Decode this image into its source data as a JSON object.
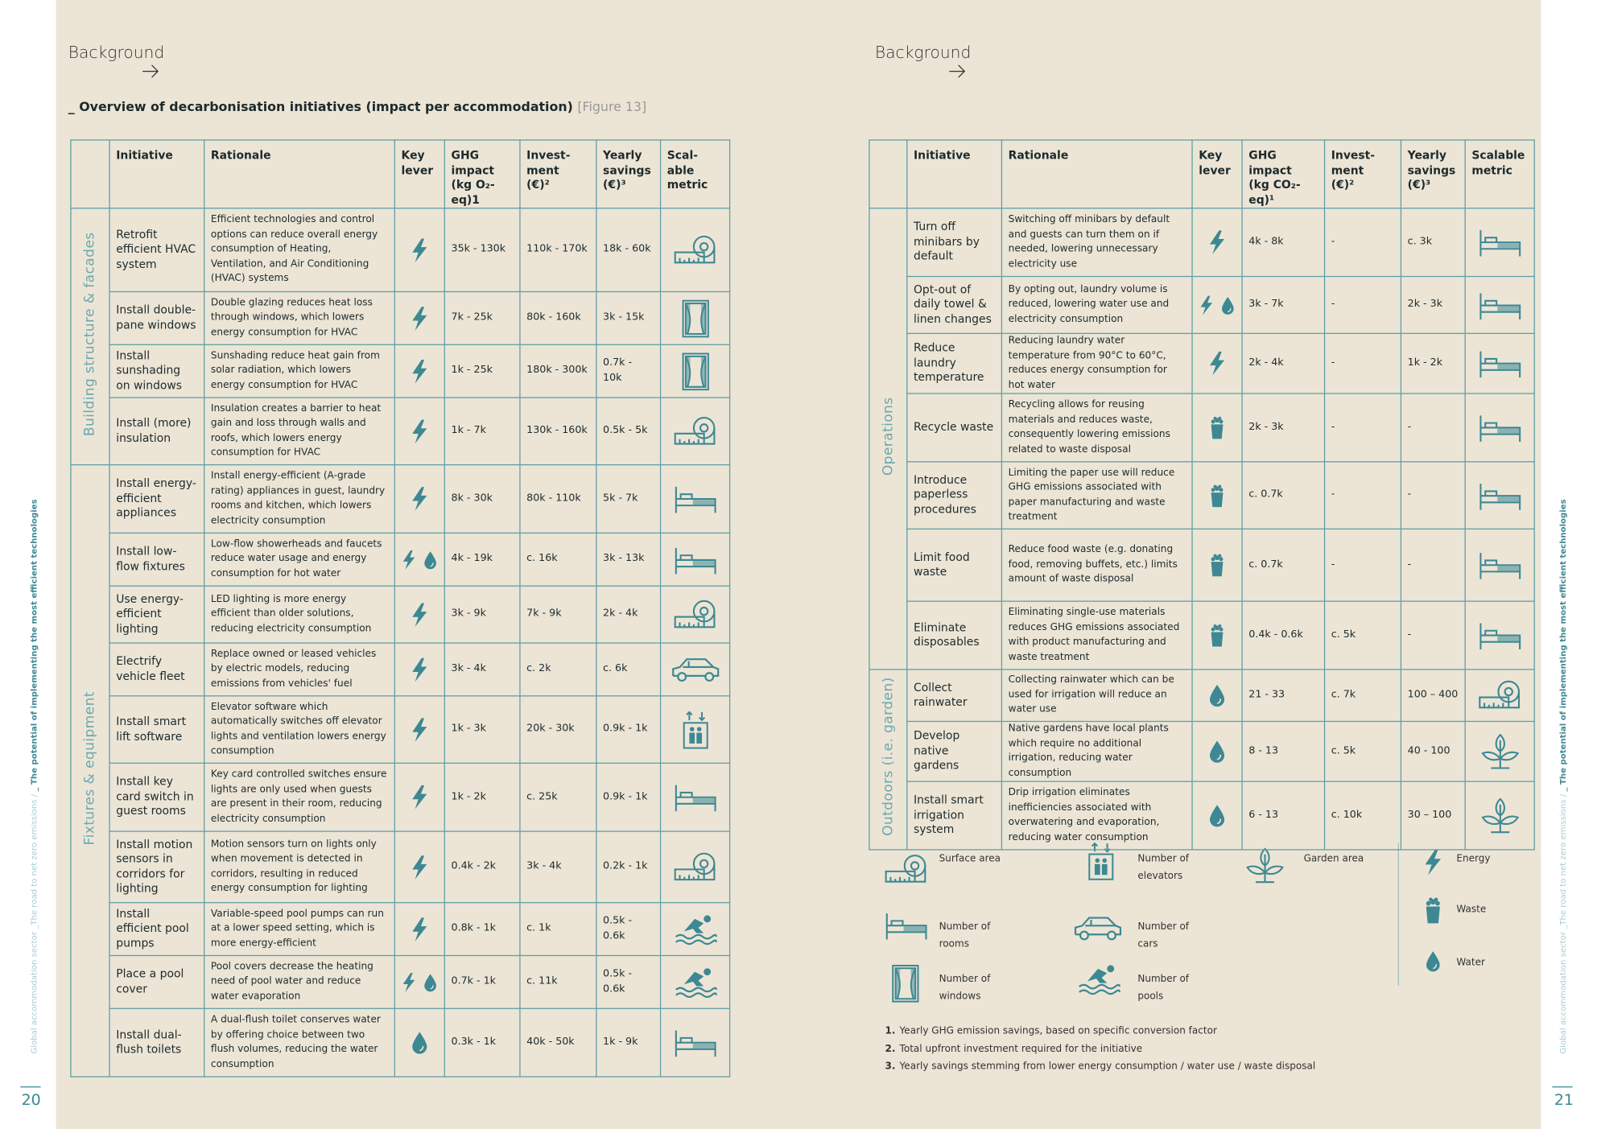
{
  "left_page": {
    "header": "Background",
    "figure_title": "_ Overview of decarbonisation initiatives (impact per accommodation)",
    "figure_ref": "[Figure 13]",
    "sidebar": {
      "section": "Global accommodation sector _The road to net zero emissions",
      "separator": "/",
      "chapter": "_ The potential of implementing the most efficient technologies",
      "page_number": "20"
    },
    "table": {
      "headers": [
        "Initiative",
        "Rationale",
        "Key\nlever",
        "GHG\nimpact\n(kg O₂-eq)1",
        "Invest-\nment\n(€)²",
        "Yearly\nsavings\n(€)³",
        "Scal-\nable\nmetric"
      ],
      "groups": [
        {
          "label": "Building structure & facades",
          "rows": [
            {
              "initiative": "Retrofit efficient HVAC system",
              "rationale": "Efficient technologies and control options can reduce overall energy consumption of Heating, Ventilation, and Air Conditioning (HVAC) systems",
              "ghg": "35k - 130k",
              "investment": "110k - 170k",
              "savings": "18k - 60k"
            },
            {
              "initiative": "Install double-pane windows",
              "rationale": "Double glazing reduces heat loss through windows, which lowers energy consumption for HVAC",
              "ghg": "7k - 25k",
              "investment": "80k - 160k",
              "savings": "3k - 15k"
            },
            {
              "initiative": "Install sunshading on windows",
              "rationale": "Sunshading reduce heat gain from solar radiation, which lowers energy consumption for HVAC",
              "ghg": "1k - 25k",
              "investment": "180k - 300k",
              "savings": "0.7k - 10k"
            },
            {
              "initiative": "Install (more) insulation",
              "rationale": "Insulation creates a barrier to heat gain and loss through walls and roofs, which lowers energy consumption for HVAC",
              "ghg": "1k - 7k",
              "investment": "130k - 160k",
              "savings": "0.5k - 5k"
            }
          ]
        },
        {
          "label": "Fixtures & equipment",
          "rows": [
            {
              "initiative": "Install energy-efficient appliances",
              "rationale": "Install energy-efficient (A-grade rating) appliances in guest, laundry rooms and kitchen, which lowers electricity consumption",
              "ghg": "8k - 30k",
              "investment": "80k - 110k",
              "savings": "5k - 7k"
            },
            {
              "initiative": "Install low-flow fixtures",
              "rationale": "Low-flow showerheads and faucets reduce water usage and energy consumption for hot water",
              "ghg": "4k - 19k",
              "investment": "c. 16k",
              "savings": "3k - 13k"
            },
            {
              "initiative": "Use energy-efficient lighting",
              "rationale": "LED lighting is more energy efficient than older solutions, reducing electricity consumption",
              "ghg": "3k - 9k",
              "investment": "7k - 9k",
              "savings": "2k - 4k"
            },
            {
              "initiative": "Electrify vehicle fleet",
              "rationale": "Replace owned or leased vehicles by electric models, reducing emissions from vehicles' fuel",
              "ghg": "3k - 4k",
              "investment": "c. 2k",
              "savings": "c. 6k"
            },
            {
              "initiative": "Install smart lift software",
              "rationale": "Elevator software which automatically switches off elevator lights and ventilation lowers energy consumption",
              "ghg": "1k - 3k",
              "investment": "20k - 30k",
              "savings": "0.9k - 1k"
            },
            {
              "initiative": "Install key card switch in guest rooms",
              "rationale": "Key card controlled switches ensure lights are only used when guests are present in their room, reducing electricity consumption",
              "ghg": "1k - 2k",
              "investment": "c. 25k",
              "savings": "0.9k - 1k"
            },
            {
              "initiative": "Install motion sensors in corridors for lighting",
              "rationale": "Motion sensors turn on lights only when movement is detected in corridors, resulting in reduced energy consumption for lighting",
              "ghg": "0.4k - 2k",
              "investment": "3k - 4k",
              "savings": "0.2k - 1k"
            },
            {
              "initiative": "Install efficient pool pumps",
              "rationale": "Variable-speed pool pumps can run at a lower speed setting, which is more energy-efficient",
              "ghg": "0.8k - 1k",
              "investment": "c. 1k",
              "savings": "0.5k - 0.6k"
            },
            {
              "initiative": "Place a pool cover",
              "rationale": "Pool covers decrease the heating need of pool water and reduce water evaporation",
              "ghg": "0.7k - 1k",
              "investment": "c. 11k",
              "savings": "0.5k - 0.6k"
            },
            {
              "initiative": "Install dual-flush toilets",
              "rationale": "A dual-flush toilet conserves water by offering choice between two flush volumes, reducing the water consumption",
              "ghg": "0.3k - 1k",
              "investment": "40k - 50k",
              "savings": "1k - 9k"
            }
          ]
        }
      ]
    }
  },
  "right_page": {
    "header": "Background",
    "sidebar": {
      "section": "Global accommodation sector _The road to net zero emissions",
      "separator": "/",
      "chapter": "_ The potential of implementing the most efficient technologies",
      "page_number": "21"
    },
    "table": {
      "headers": [
        "Initiative",
        "Rationale",
        "Key\nlever",
        "GHG\nimpact\n(kg CO₂-eq)¹",
        "Invest-\nment\n(€)²",
        "Yearly\nsavings\n(€)³",
        "Scalable\nmetric"
      ],
      "groups": [
        {
          "label": "Operations",
          "rows": [
            {
              "initiative": "Turn off minibars by default",
              "rationale": "Switching off minibars by default and guests can turn them on if needed, lowering unnecessary electricity use",
              "ghg": "4k - 8k",
              "investment": "-",
              "savings": "c. 3k"
            },
            {
              "initiative": "Opt-out of daily towel & linen changes",
              "rationale": "By opting out, laundry volume is reduced, lowering water use and electricity consumption",
              "ghg": "3k - 7k",
              "investment": "-",
              "savings": "2k - 3k"
            },
            {
              "initiative": "Reduce laundry temperature",
              "rationale": "Reducing laundry water temperature from 90°C to 60°C, reduces energy consumption for hot water",
              "ghg": "2k - 4k",
              "investment": "-",
              "savings": "1k - 2k"
            },
            {
              "initiative": "Recycle waste",
              "rationale": "Recycling allows for reusing materials and reduces waste, consequently lowering emissions related to waste disposal",
              "ghg": "2k - 3k",
              "investment": "-",
              "savings": "-"
            },
            {
              "initiative": "Introduce paperless procedures",
              "rationale": "Limiting the paper use will reduce GHG emissions associated with paper manufacturing and waste treatment",
              "ghg": "c. 0.7k",
              "investment": "-",
              "savings": "-"
            },
            {
              "initiative": "Limit food waste",
              "rationale": "Reduce food waste (e.g. donating food, removing buffets, etc.) limits amount of waste disposal",
              "ghg": "c. 0.7k",
              "investment": "-",
              "savings": "-"
            },
            {
              "initiative": "Eliminate disposables",
              "rationale": "Eliminating single-use materials reduces GHG emissions associated with product manufacturing and waste treatment",
              "ghg": "0.4k - 0.6k",
              "investment": "c. 5k",
              "savings": "-"
            }
          ]
        },
        {
          "label": "Outdoors (i.e. garden)",
          "rows": [
            {
              "initiative": "Collect rainwater",
              "rationale": "Collecting rainwater which can be used for irrigation will reduce an water use",
              "ghg": "21 - 33",
              "investment": "c. 7k",
              "savings": "100 – 400"
            },
            {
              "initiative": "Develop native gardens",
              "rationale": "Native gardens have local plants which require no additional irrigation, reducing water consumption",
              "ghg": "8 - 13",
              "investment": "c. 5k",
              "savings": "40 - 100"
            },
            {
              "initiative": "Install smart irrigation system",
              "rationale": "Drip irrigation eliminates inefficiencies associated with overwatering and evaporation, reducing water consumption",
              "ghg": "6 - 13",
              "investment": "c. 10k",
              "savings": "30 – 100"
            }
          ]
        }
      ]
    },
    "legend": [
      "Surface area",
      "Number of elevators",
      "Garden area",
      "Energy",
      "Number of rooms",
      "Number of cars",
      "Waste",
      "Number of windows",
      "Number of pools",
      "Water"
    ],
    "footnotes": [
      {
        "number": "1.",
        "text": "Yearly GHG emission savings, based on specific conversion factor"
      },
      {
        "number": "2.",
        "text": "Total upfront investment required for the initiative"
      },
      {
        "number": "3.",
        "text": "Yearly savings stemming from lower energy consumption / water use / waste disposal"
      }
    ]
  }
}
